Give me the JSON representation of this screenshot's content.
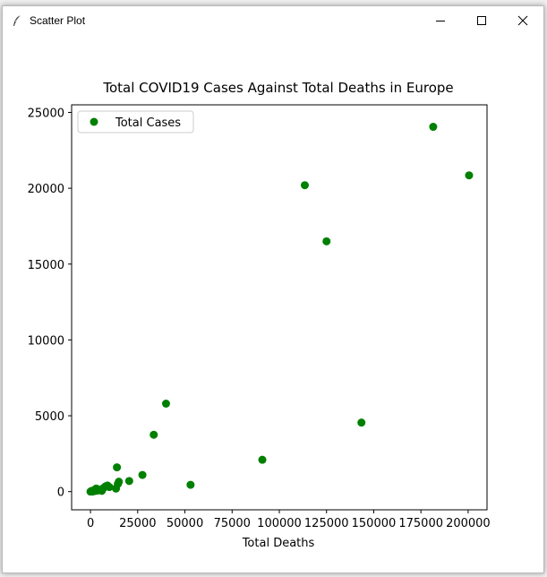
{
  "window": {
    "title": "Scatter Plot",
    "controls": {
      "minimize": "minimize",
      "maximize": "maximize",
      "close": "close"
    }
  },
  "chart_data": {
    "type": "scatter",
    "title": "Total COVID19  Cases Against Total Deaths in Europe",
    "xlabel": "Total  Deaths",
    "ylabel": "",
    "xlim": [
      -10000,
      210000
    ],
    "ylim": [
      -1200,
      25500
    ],
    "xticks": [
      0,
      25000,
      50000,
      75000,
      100000,
      125000,
      150000,
      175000,
      200000
    ],
    "yticks": [
      0,
      5000,
      10000,
      15000,
      20000,
      25000
    ],
    "legend_position": "upper-left",
    "grid": false,
    "color": "#008000",
    "series": [
      {
        "name": "Total Cases",
        "points": [
          [
            0,
            0
          ],
          [
            600,
            50
          ],
          [
            1000,
            0
          ],
          [
            1500,
            80
          ],
          [
            2000,
            30
          ],
          [
            2500,
            120
          ],
          [
            3000,
            200
          ],
          [
            3500,
            60
          ],
          [
            4000,
            150
          ],
          [
            5000,
            100
          ],
          [
            6000,
            50
          ],
          [
            7000,
            250
          ],
          [
            8000,
            350
          ],
          [
            9000,
            400
          ],
          [
            10000,
            300
          ],
          [
            13500,
            200
          ],
          [
            14500,
            500
          ],
          [
            15000,
            650
          ],
          [
            14000,
            1600
          ],
          [
            20500,
            700
          ],
          [
            27500,
            1100
          ],
          [
            33500,
            3750
          ],
          [
            40000,
            5800
          ],
          [
            53000,
            450
          ],
          [
            91000,
            2100
          ],
          [
            113500,
            20200
          ],
          [
            125000,
            16500
          ],
          [
            143500,
            4550
          ],
          [
            181500,
            24050
          ],
          [
            200500,
            20850
          ]
        ]
      }
    ]
  }
}
